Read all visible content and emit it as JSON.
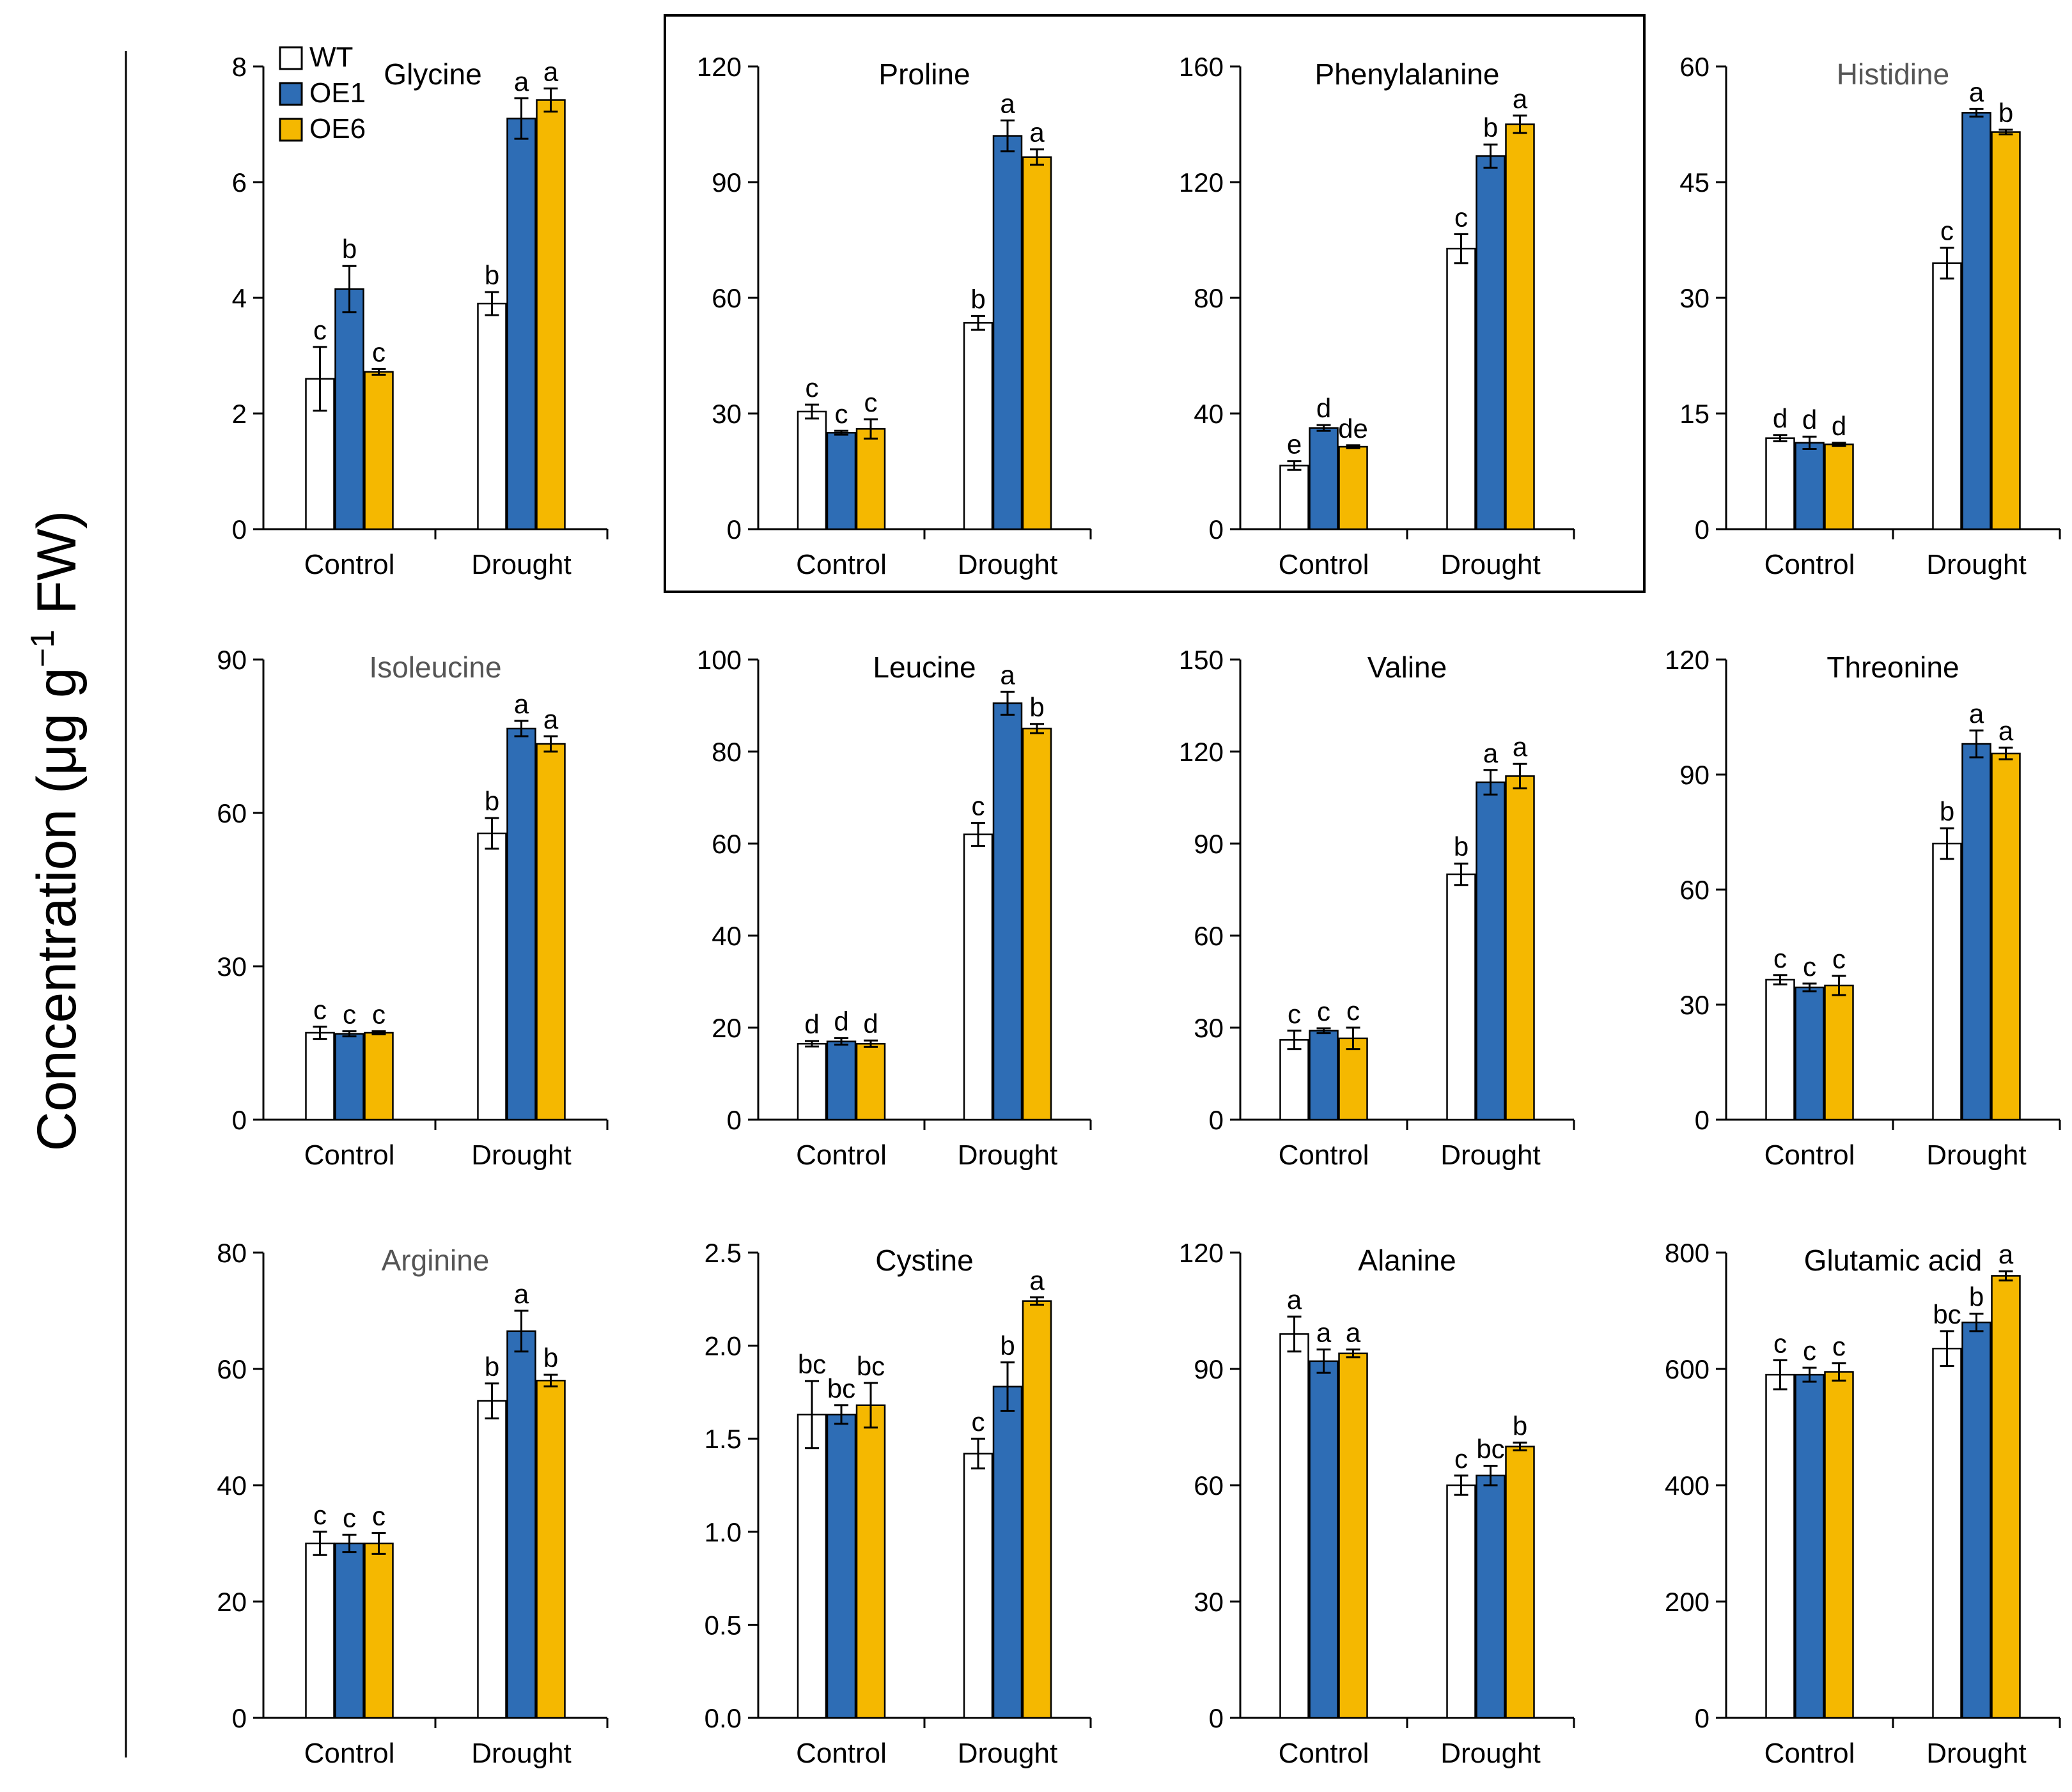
{
  "figure": {
    "y_axis_label": "Concentration (μg g",
    "y_axis_label_sup": "−1",
    "y_axis_label_tail": " FW)"
  },
  "legend": {
    "entries": [
      {
        "name": "WT",
        "color": "#ffffff"
      },
      {
        "name": "OE1",
        "color": "#2e6db5"
      },
      {
        "name": "OE6",
        "color": "#f5b800"
      }
    ]
  },
  "colors": {
    "WT": "#ffffff",
    "OE1": "#2e6db5",
    "OE6": "#f5b800",
    "axis": "#000000",
    "title_gray": "#555555"
  },
  "chart_data": [
    {
      "type": "bar",
      "title": "Glycine",
      "categories": [
        "Control",
        "Drought"
      ],
      "ylim": [
        0,
        8
      ],
      "yticks": [
        "0",
        "2",
        "4",
        "6",
        "8"
      ],
      "series": [
        {
          "name": "WT",
          "values": [
            2.6,
            3.9
          ],
          "errors": [
            0.55,
            0.2
          ],
          "letters": [
            "c",
            "b"
          ]
        },
        {
          "name": "OE1",
          "values": [
            4.15,
            7.1
          ],
          "errors": [
            0.4,
            0.35
          ],
          "letters": [
            "b",
            "a"
          ]
        },
        {
          "name": "OE6",
          "values": [
            2.72,
            7.42
          ],
          "errors": [
            0.05,
            0.2
          ],
          "letters": [
            "c",
            "a"
          ]
        }
      ]
    },
    {
      "type": "bar",
      "title": "Proline",
      "categories": [
        "Control",
        "Drought"
      ],
      "ylim": [
        0,
        120
      ],
      "yticks": [
        "0",
        "30",
        "60",
        "90",
        "120"
      ],
      "series": [
        {
          "name": "WT",
          "values": [
            30.5,
            53.5
          ],
          "errors": [
            1.8,
            1.8
          ],
          "letters": [
            "c",
            "b"
          ]
        },
        {
          "name": "OE1",
          "values": [
            25.0,
            102
          ],
          "errors": [
            0.5,
            4.0
          ],
          "letters": [
            "c",
            "a"
          ]
        },
        {
          "name": "OE6",
          "values": [
            26.0,
            96.5
          ],
          "errors": [
            2.5,
            2.0
          ],
          "letters": [
            "c",
            "a"
          ]
        }
      ]
    },
    {
      "type": "bar",
      "title": "Phenylalanine",
      "categories": [
        "Control",
        "Drought"
      ],
      "ylim": [
        0,
        160
      ],
      "yticks": [
        "0",
        "40",
        "80",
        "120",
        "160"
      ],
      "series": [
        {
          "name": "WT",
          "values": [
            22,
            97
          ],
          "errors": [
            1.5,
            5.0
          ],
          "letters": [
            "e",
            "c"
          ]
        },
        {
          "name": "OE1",
          "values": [
            35,
            129
          ],
          "errors": [
            1.0,
            4.0
          ],
          "letters": [
            "d",
            "b"
          ]
        },
        {
          "name": "OE6",
          "values": [
            28.5,
            140
          ],
          "errors": [
            0.5,
            3.0
          ],
          "letters": [
            "de",
            "a"
          ]
        }
      ]
    },
    {
      "type": "bar",
      "title": "Histidine",
      "categories": [
        "Control",
        "Drought"
      ],
      "ylim": [
        0,
        60
      ],
      "yticks": [
        "0",
        "15",
        "30",
        "45",
        "60"
      ],
      "series": [
        {
          "name": "WT",
          "values": [
            11.8,
            34.5
          ],
          "errors": [
            0.4,
            2.0
          ],
          "letters": [
            "d",
            "c"
          ]
        },
        {
          "name": "OE1",
          "values": [
            11.2,
            54.0
          ],
          "errors": [
            0.8,
            0.5
          ],
          "letters": [
            "d",
            "a"
          ]
        },
        {
          "name": "OE6",
          "values": [
            11.0,
            51.5
          ],
          "errors": [
            0.2,
            0.3
          ],
          "letters": [
            "d",
            "b"
          ]
        }
      ]
    },
    {
      "type": "bar",
      "title": "Isoleucine",
      "categories": [
        "Control",
        "Drought"
      ],
      "ylim": [
        0,
        90
      ],
      "yticks": [
        "0",
        "30",
        "60",
        "90"
      ],
      "series": [
        {
          "name": "WT",
          "values": [
            17.0,
            56.0
          ],
          "errors": [
            1.2,
            3.0
          ],
          "letters": [
            "c",
            "b"
          ]
        },
        {
          "name": "OE1",
          "values": [
            16.8,
            76.5
          ],
          "errors": [
            0.5,
            1.5
          ],
          "letters": [
            "c",
            "a"
          ]
        },
        {
          "name": "OE6",
          "values": [
            17.0,
            73.5
          ],
          "errors": [
            0.3,
            1.5
          ],
          "letters": [
            "c",
            "a"
          ]
        }
      ]
    },
    {
      "type": "bar",
      "title": "Leucine",
      "categories": [
        "Control",
        "Drought"
      ],
      "ylim": [
        0,
        100
      ],
      "yticks": [
        "0",
        "20",
        "40",
        "60",
        "80",
        "100"
      ],
      "series": [
        {
          "name": "WT",
          "values": [
            16.5,
            62.0
          ],
          "errors": [
            0.6,
            2.5
          ],
          "letters": [
            "d",
            "c"
          ]
        },
        {
          "name": "OE1",
          "values": [
            17.0,
            90.5
          ],
          "errors": [
            0.7,
            2.5
          ],
          "letters": [
            "d",
            "a"
          ]
        },
        {
          "name": "OE6",
          "values": [
            16.5,
            85.0
          ],
          "errors": [
            0.7,
            1.0
          ],
          "letters": [
            "d",
            "b"
          ]
        }
      ]
    },
    {
      "type": "bar",
      "title": "Valine",
      "categories": [
        "Control",
        "Drought"
      ],
      "ylim": [
        0,
        150
      ],
      "yticks": [
        "0",
        "30",
        "60",
        "90",
        "120",
        "150"
      ],
      "series": [
        {
          "name": "WT",
          "values": [
            26.0,
            80.0
          ],
          "errors": [
            3.0,
            3.5
          ],
          "letters": [
            "c",
            "b"
          ]
        },
        {
          "name": "OE1",
          "values": [
            29.0,
            110
          ],
          "errors": [
            0.8,
            4.0
          ],
          "letters": [
            "c",
            "a"
          ]
        },
        {
          "name": "OE6",
          "values": [
            26.5,
            112
          ],
          "errors": [
            3.5,
            4.0
          ],
          "letters": [
            "c",
            "a"
          ]
        }
      ]
    },
    {
      "type": "bar",
      "title": "Threonine",
      "categories": [
        "Control",
        "Drought"
      ],
      "ylim": [
        0,
        120
      ],
      "yticks": [
        "0",
        "30",
        "60",
        "90",
        "120"
      ],
      "series": [
        {
          "name": "WT",
          "values": [
            36.5,
            72.0
          ],
          "errors": [
            1.2,
            4.0
          ],
          "letters": [
            "c",
            "b"
          ]
        },
        {
          "name": "OE1",
          "values": [
            34.5,
            98.0
          ],
          "errors": [
            1.0,
            3.5
          ],
          "letters": [
            "c",
            "a"
          ]
        },
        {
          "name": "OE6",
          "values": [
            35.0,
            95.5
          ],
          "errors": [
            2.5,
            1.5
          ],
          "letters": [
            "c",
            "a"
          ]
        }
      ]
    },
    {
      "type": "bar",
      "title": "Arginine",
      "categories": [
        "Control",
        "Drought"
      ],
      "ylim": [
        0,
        80
      ],
      "yticks": [
        "0",
        "20",
        "40",
        "60",
        "80"
      ],
      "series": [
        {
          "name": "WT",
          "values": [
            30.0,
            54.5
          ],
          "errors": [
            2.0,
            3.0
          ],
          "letters": [
            "c",
            "b"
          ]
        },
        {
          "name": "OE1",
          "values": [
            30.0,
            66.5
          ],
          "errors": [
            1.5,
            3.5
          ],
          "letters": [
            "c",
            "a"
          ]
        },
        {
          "name": "OE6",
          "values": [
            30.0,
            58.0
          ],
          "errors": [
            1.8,
            1.0
          ],
          "letters": [
            "c",
            "b"
          ]
        }
      ]
    },
    {
      "type": "bar",
      "title": "Cystine",
      "categories": [
        "Control",
        "Drought"
      ],
      "ylim": [
        0,
        2.5
      ],
      "yticks": [
        "0.0",
        "0.5",
        "1.0",
        "1.5",
        "2.0",
        "2.5"
      ],
      "series": [
        {
          "name": "WT",
          "values": [
            1.63,
            1.42
          ],
          "errors": [
            0.18,
            0.08
          ],
          "letters": [
            "bc",
            "c"
          ]
        },
        {
          "name": "OE1",
          "values": [
            1.63,
            1.78
          ],
          "errors": [
            0.05,
            0.13
          ],
          "letters": [
            "bc",
            "b"
          ]
        },
        {
          "name": "OE6",
          "values": [
            1.68,
            2.24
          ],
          "errors": [
            0.12,
            0.02
          ],
          "letters": [
            "bc",
            "a"
          ]
        }
      ]
    },
    {
      "type": "bar",
      "title": "Alanine",
      "categories": [
        "Control",
        "Drought"
      ],
      "ylim": [
        0,
        120
      ],
      "yticks": [
        "0",
        "30",
        "60",
        "90",
        "120"
      ],
      "series": [
        {
          "name": "WT",
          "values": [
            99.0,
            60.0
          ],
          "errors": [
            4.5,
            2.5
          ],
          "letters": [
            "a",
            "c"
          ]
        },
        {
          "name": "OE1",
          "values": [
            92.0,
            62.5
          ],
          "errors": [
            3.0,
            2.5
          ],
          "letters": [
            "a",
            "bc"
          ]
        },
        {
          "name": "OE6",
          "values": [
            94.0,
            70.0
          ],
          "errors": [
            1.0,
            1.0
          ],
          "letters": [
            "a",
            "b"
          ]
        }
      ]
    },
    {
      "type": "bar",
      "title": "Glutamic acid",
      "categories": [
        "Control",
        "Drought"
      ],
      "ylim": [
        0,
        800
      ],
      "yticks": [
        "0",
        "200",
        "400",
        "600",
        "800"
      ],
      "series": [
        {
          "name": "WT",
          "values": [
            590,
            635
          ],
          "errors": [
            25,
            30
          ],
          "letters": [
            "c",
            "bc"
          ]
        },
        {
          "name": "OE1",
          "values": [
            590,
            680
          ],
          "errors": [
            12,
            15
          ],
          "letters": [
            "c",
            "b"
          ]
        },
        {
          "name": "OE6",
          "values": [
            595,
            760
          ],
          "errors": [
            15,
            8
          ],
          "letters": [
            "c",
            "a"
          ]
        }
      ]
    }
  ]
}
